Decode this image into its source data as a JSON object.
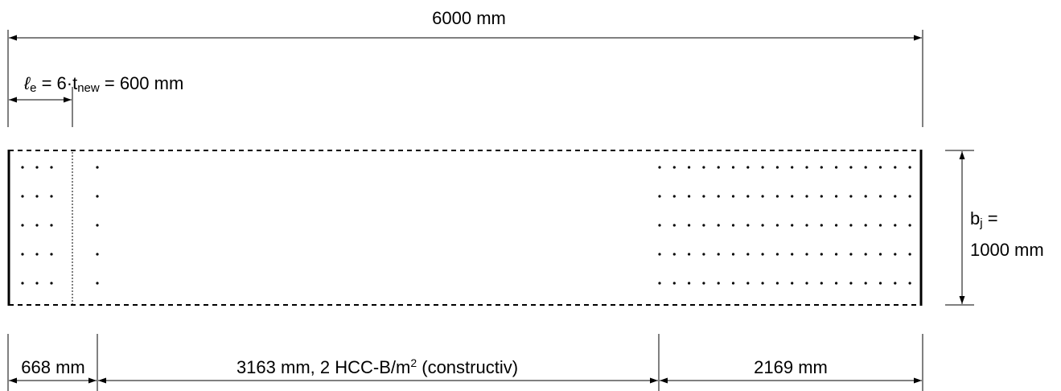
{
  "diagram": {
    "total_length": "6000 mm",
    "edge_length": {
      "symbol": "ℓ",
      "symbol_sub": "e",
      "eq1": " = 6·t",
      "sub": "new",
      "eq2": " = 600 mm"
    },
    "width": {
      "symbol": "b",
      "symbol_sub": "j",
      "eq": " =",
      "value": "1000 mm"
    },
    "segments": [
      {
        "label": "668 mm"
      },
      {
        "label_main": "3163 mm, 2 HCC-B/m",
        "label_sup": "2",
        "label_tail": " (constructiv)"
      },
      {
        "label": "2169 mm"
      }
    ],
    "colors": {
      "stroke": "#000000",
      "background": "#ffffff"
    }
  }
}
